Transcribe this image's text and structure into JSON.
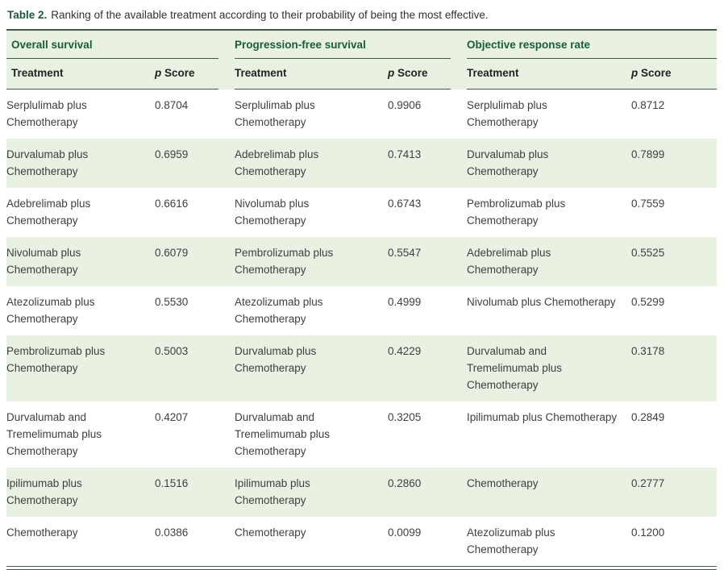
{
  "caption": {
    "label": "Table 2.",
    "text": "Ranking of the available treatment according to their probability of being the most effective."
  },
  "groups": [
    {
      "title": "Overall survival"
    },
    {
      "title": "Progression-free survival"
    },
    {
      "title": "Objective response rate"
    }
  ],
  "headers": {
    "treatment": "Treatment",
    "p": "p",
    "score": "Score"
  },
  "rows": [
    {
      "os": {
        "t": "Serplulimab plus Chemotherapy",
        "s": "0.8704"
      },
      "pfs": {
        "t": "Serplulimab plus Chemotherapy",
        "s": "0.9906"
      },
      "orr": {
        "t": "Serplulimab plus Chemotherapy",
        "s": "0.8712"
      }
    },
    {
      "os": {
        "t": "Durvalumab plus Chemotherapy",
        "s": "0.6959"
      },
      "pfs": {
        "t": "Adebrelimab plus Chemotherapy",
        "s": "0.7413"
      },
      "orr": {
        "t": "Durvalumab plus Chemotherapy",
        "s": "0.7899"
      }
    },
    {
      "os": {
        "t": "Adebrelimab plus Chemotherapy",
        "s": "0.6616"
      },
      "pfs": {
        "t": "Nivolumab plus Chemotherapy",
        "s": "0.6743"
      },
      "orr": {
        "t": "Pembrolizumab plus Chemotherapy",
        "s": "0.7559"
      }
    },
    {
      "os": {
        "t": "Nivolumab plus Chemotherapy",
        "s": "0.6079"
      },
      "pfs": {
        "t": "Pembrolizumab plus Chemotherapy",
        "s": "0.5547"
      },
      "orr": {
        "t": "Adebrelimab plus Chemotherapy",
        "s": "0.5525"
      }
    },
    {
      "os": {
        "t": "Atezolizumab plus Chemotherapy",
        "s": "0.5530"
      },
      "pfs": {
        "t": "Atezolizumab plus Chemotherapy",
        "s": "0.4999"
      },
      "orr": {
        "t": "Nivolumab plus Chemotherapy",
        "s": "0.5299"
      }
    },
    {
      "os": {
        "t": "Pembrolizumab plus Chemotherapy",
        "s": "0.5003"
      },
      "pfs": {
        "t": "Durvalumab plus Chemotherapy",
        "s": "0.4229"
      },
      "orr": {
        "t": "Durvalumab and Tremelimumab plus Chemotherapy",
        "s": "0.3178"
      }
    },
    {
      "os": {
        "t": "Durvalumab and Tremelimumab plus Chemotherapy",
        "s": "0.4207"
      },
      "pfs": {
        "t": "Durvalumab and Tremelimumab plus Chemotherapy",
        "s": "0.3205"
      },
      "orr": {
        "t": "Ipilimumab plus Chemotherapy",
        "s": "0.2849"
      }
    },
    {
      "os": {
        "t": "Ipilimumab plus Chemotherapy",
        "s": "0.1516"
      },
      "pfs": {
        "t": "Ipilimumab plus Chemotherapy",
        "s": "0.2860"
      },
      "orr": {
        "t": "Chemotherapy",
        "s": "0.2777"
      }
    },
    {
      "os": {
        "t": "Chemotherapy",
        "s": "0.0386"
      },
      "pfs": {
        "t": "Chemotherapy",
        "s": "0.0099"
      },
      "orr": {
        "t": "Atezolizumab plus Chemotherapy",
        "s": "0.1200"
      }
    }
  ],
  "colors": {
    "green": "#1a5e33",
    "light_green": "#e8f1e2",
    "rule": "#44584c"
  }
}
